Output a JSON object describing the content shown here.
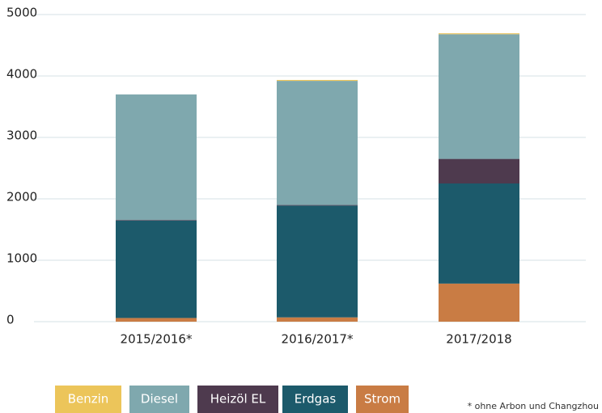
{
  "chart_data": {
    "type": "stacked_bar",
    "categories": [
      "2015/2016*",
      "2016/2017*",
      "2017/2018"
    ],
    "series": [
      {
        "name": "Benzin",
        "color": "#ecc55a",
        "values": [
          0,
          15,
          15
        ]
      },
      {
        "name": "Diesel",
        "color": "#7fa8ae",
        "values": [
          2045,
          2020,
          2030
        ]
      },
      {
        "name": "Heizöl EL",
        "color": "#4e3a4e",
        "values": [
          10,
          10,
          400
        ]
      },
      {
        "name": "Erdgas",
        "color": "#1c5a6b",
        "values": [
          1585,
          1820,
          1630
        ]
      },
      {
        "name": "Strom",
        "color": "#c97c44",
        "values": [
          60,
          70,
          620
        ]
      }
    ],
    "ylim": [
      0,
      5000
    ],
    "yticks": [
      0,
      1000,
      2000,
      3000,
      4000,
      5000
    ],
    "grid": true,
    "footnote": "* ohne Arbon und Changzhou"
  }
}
